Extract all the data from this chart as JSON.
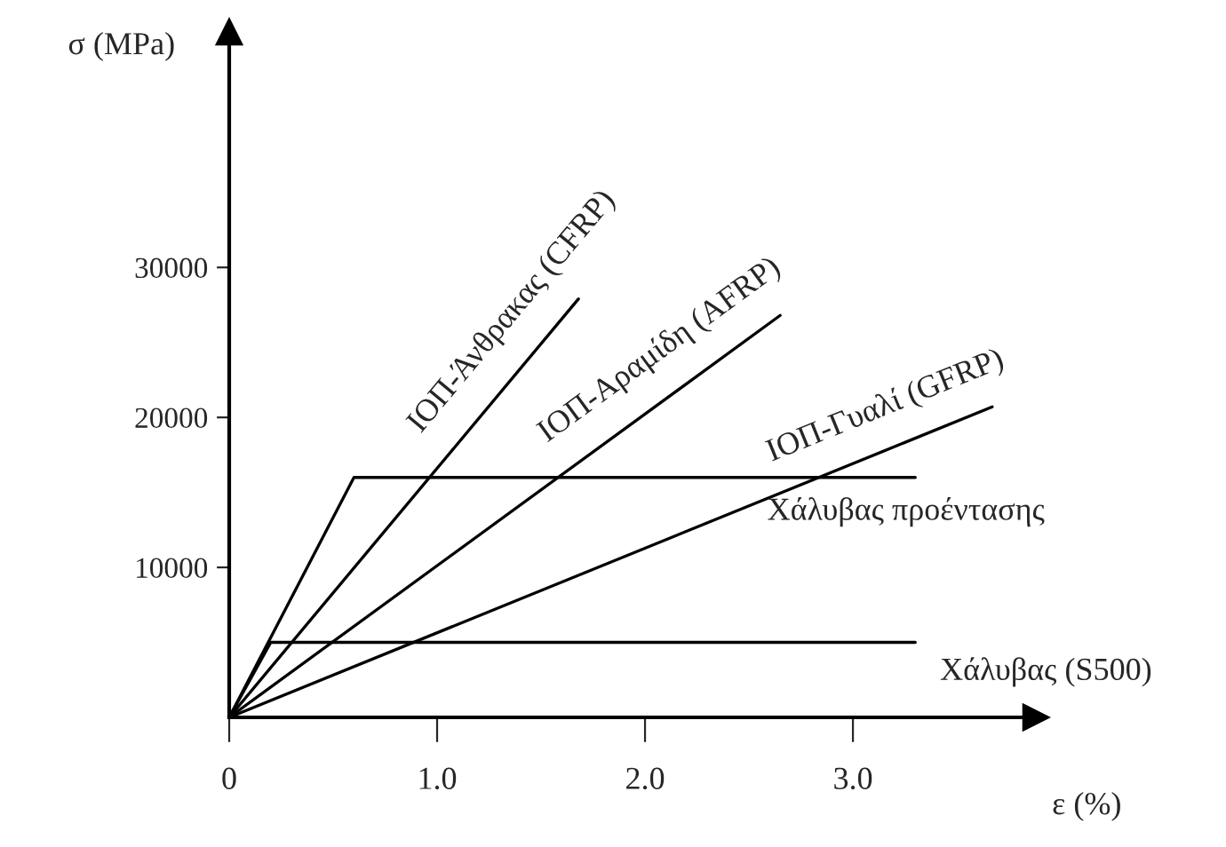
{
  "chart_data": {
    "type": "line",
    "xlabel": "ε (%)",
    "ylabel": "σ (MPa)",
    "xlim": [
      0,
      3.88
    ],
    "ylim": [
      0,
      45700
    ],
    "xticks": [
      {
        "value": 0,
        "label": "0"
      },
      {
        "value": 1,
        "label": "1.0"
      },
      {
        "value": 2,
        "label": "2.0"
      },
      {
        "value": 3,
        "label": "3.0"
      }
    ],
    "yticks": [
      10000,
      20000,
      30000
    ],
    "grid": false,
    "legend": false,
    "marker": "none",
    "line_style": "solid",
    "series": [
      {
        "name": "ΙΟΠ-Άνθρακας (CFRP)",
        "color": "#000000",
        "x": [
          0,
          1.68
        ],
        "values": [
          0,
          27900
        ]
      },
      {
        "name": "ΙΟΠ-Αραμίδη (AFRP)",
        "color": "#000000",
        "x": [
          0,
          2.65
        ],
        "values": [
          0,
          26800
        ]
      },
      {
        "name": "ΙΟΠ-Γυαλί (GFRP)",
        "color": "#000000",
        "x": [
          0,
          3.67
        ],
        "values": [
          0,
          20700
        ]
      },
      {
        "name": "Χάλυβας προέντασης",
        "color": "#000000",
        "x": [
          0,
          0.6,
          3.3
        ],
        "values": [
          0,
          16000,
          16000
        ]
      },
      {
        "name": "Χάλυβας (S500)",
        "color": "#000000",
        "x": [
          0,
          0.2,
          3.3
        ],
        "values": [
          0,
          5000,
          5000
        ]
      }
    ]
  }
}
